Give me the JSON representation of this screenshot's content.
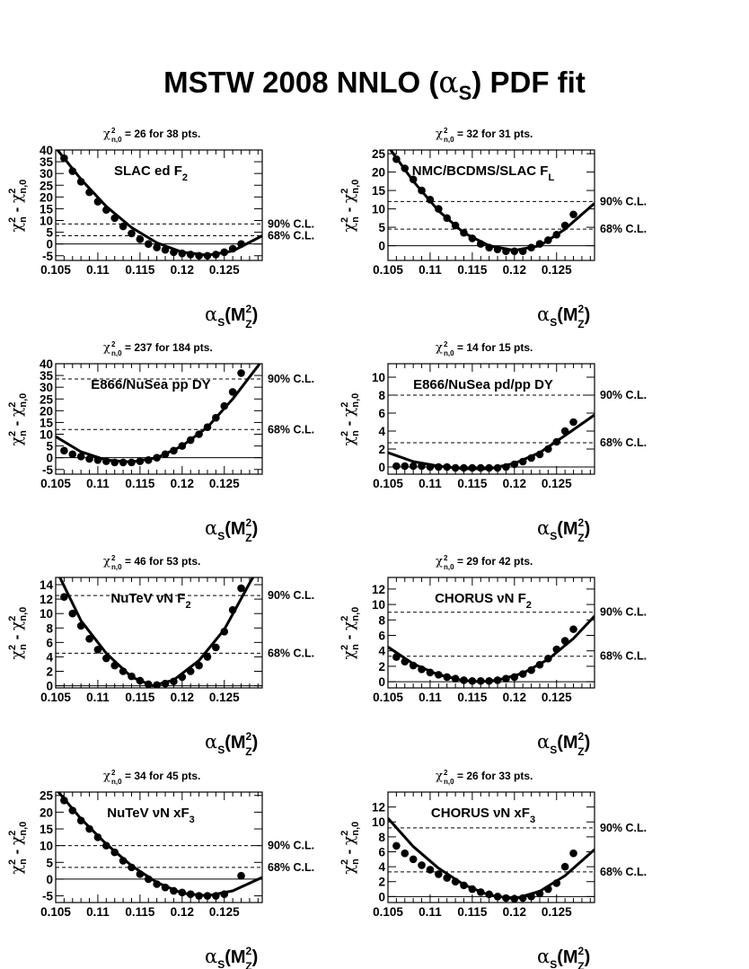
{
  "title": {
    "prefix": "MSTW 2008 NNLO (",
    "alpha": "α",
    "sub": "S",
    "suffix": ") PDF fit"
  },
  "axis_text": {
    "alpha": "α",
    "s_sub": "S",
    "mz": "(M",
    "two": "2",
    "z_sub": "Z",
    "close": ")",
    "chi": "χ",
    "n": "n",
    "n0": "n,0",
    "dash": " - "
  },
  "chart_data": [
    {
      "type": "scatter",
      "header": {
        "sub": "n,0",
        "text": " =  26 for  38 pts."
      },
      "label": "SLAC ed F",
      "label_sub": "2",
      "xlim": [
        0.105,
        0.1295
      ],
      "ylim": [
        -7,
        40
      ],
      "xticks": [
        0.105,
        0.11,
        0.115,
        0.12,
        0.125
      ],
      "xtick_labels": [
        "0.105",
        "0.11",
        "0.115",
        "0.12",
        "0.125"
      ],
      "yticks": [
        -5,
        0,
        5,
        10,
        15,
        20,
        25,
        30,
        35,
        40
      ],
      "ytick_labels": [
        "-5",
        "0",
        "5",
        "10",
        "15",
        "20",
        "25",
        "30",
        "35",
        "40"
      ],
      "cl90": 8.5,
      "cl68": 3.5,
      "cl90_label": "90% C.L.",
      "cl68_label": "68% C.L.",
      "x": [
        0.106,
        0.107,
        0.108,
        0.109,
        0.11,
        0.111,
        0.112,
        0.113,
        0.114,
        0.115,
        0.116,
        0.117,
        0.118,
        0.119,
        0.12,
        0.121,
        0.122,
        0.123,
        0.124,
        0.125,
        0.126,
        0.127
      ],
      "y": [
        36.5,
        31,
        26.5,
        22,
        18,
        14.5,
        11,
        7.5,
        4.5,
        2,
        0,
        -1.5,
        -2.5,
        -3.5,
        -4,
        -4.5,
        -5,
        -5,
        -4.5,
        -3.5,
        -2,
        0
      ],
      "curve": [
        [
          0.105,
          41
        ],
        [
          0.108,
          27.5
        ],
        [
          0.111,
          16
        ],
        [
          0.114,
          7
        ],
        [
          0.117,
          0.5
        ],
        [
          0.12,
          -3.5
        ],
        [
          0.123,
          -4.8
        ],
        [
          0.126,
          -3
        ],
        [
          0.1295,
          3.5
        ]
      ]
    },
    {
      "type": "scatter",
      "header": {
        "sub": "n,0",
        "text": " =  32 for  31 pts."
      },
      "label": "NMC/BCDMS/SLAC F",
      "label_sub": "L",
      "xlim": [
        0.105,
        0.1295
      ],
      "ylim": [
        -4,
        26
      ],
      "xticks": [
        0.105,
        0.11,
        0.115,
        0.12,
        0.125
      ],
      "xtick_labels": [
        "0.105",
        "0.11",
        "0.115",
        "0.12",
        "0.125"
      ],
      "yticks": [
        0,
        5,
        10,
        15,
        20,
        25
      ],
      "ytick_labels": [
        "0",
        "5",
        "10",
        "15",
        "20",
        "25"
      ],
      "cl90": 12,
      "cl68": 4.5,
      "cl90_label": "90% C.L.",
      "cl68_label": "68% C.L.",
      "x": [
        0.106,
        0.107,
        0.108,
        0.109,
        0.11,
        0.111,
        0.112,
        0.113,
        0.114,
        0.115,
        0.116,
        0.117,
        0.118,
        0.119,
        0.12,
        0.121,
        0.122,
        0.123,
        0.124,
        0.125,
        0.126,
        0.127
      ],
      "y": [
        23.5,
        21,
        18,
        15,
        12.5,
        10,
        7.5,
        5.5,
        3.5,
        2,
        0.5,
        -0.5,
        -1,
        -1.5,
        -1.5,
        -1.5,
        -0.5,
        0.5,
        1.5,
        3,
        5.5,
        8.5
      ],
      "curve": [
        [
          0.105,
          27
        ],
        [
          0.108,
          17.5
        ],
        [
          0.111,
          9.5
        ],
        [
          0.114,
          3.5
        ],
        [
          0.117,
          0
        ],
        [
          0.12,
          -1.3
        ],
        [
          0.123,
          0
        ],
        [
          0.126,
          4.5
        ],
        [
          0.1295,
          11.5
        ]
      ]
    },
    {
      "type": "scatter",
      "header": {
        "sub": "n,0",
        "text": " = 237 for 184 pts."
      },
      "label": "E866/NuSea pp DY",
      "label_sub": "",
      "xlim": [
        0.105,
        0.1295
      ],
      "ylim": [
        -7,
        40
      ],
      "xticks": [
        0.105,
        0.11,
        0.115,
        0.12,
        0.125
      ],
      "xtick_labels": [
        "0.105",
        "0.11",
        "0.115",
        "0.12",
        "0.125"
      ],
      "yticks": [
        -5,
        0,
        5,
        10,
        15,
        20,
        25,
        30,
        35,
        40
      ],
      "ytick_labels": [
        "-5",
        "0",
        "5",
        "10",
        "15",
        "20",
        "25",
        "30",
        "35",
        "40"
      ],
      "cl90": 33.5,
      "cl68": 12,
      "cl90_label": "90% C.L.",
      "cl68_label": "68% C.L.",
      "x": [
        0.106,
        0.107,
        0.108,
        0.109,
        0.11,
        0.111,
        0.112,
        0.113,
        0.114,
        0.115,
        0.116,
        0.117,
        0.118,
        0.119,
        0.12,
        0.121,
        0.122,
        0.123,
        0.124,
        0.125,
        0.126,
        0.127
      ],
      "y": [
        3,
        1.5,
        0.5,
        -0.5,
        -1,
        -1.5,
        -2,
        -2,
        -2,
        -1.5,
        -1,
        0,
        1.5,
        3,
        5,
        7.5,
        10,
        13,
        17,
        22,
        28,
        36
      ],
      "curve": [
        [
          0.105,
          9
        ],
        [
          0.108,
          2.5
        ],
        [
          0.111,
          -1
        ],
        [
          0.114,
          -1.8
        ],
        [
          0.117,
          0
        ],
        [
          0.12,
          5
        ],
        [
          0.123,
          13
        ],
        [
          0.126,
          25
        ],
        [
          0.1292,
          40
        ]
      ]
    },
    {
      "type": "scatter",
      "header": {
        "sub": "n,0",
        "text": " =  14 for  15 pts."
      },
      "label": "E866/NuSea pd/pp DY",
      "label_sub": "",
      "xlim": [
        0.105,
        0.1295
      ],
      "ylim": [
        -0.8,
        11.5
      ],
      "xticks": [
        0.105,
        0.11,
        0.115,
        0.12,
        0.125
      ],
      "xtick_labels": [
        "0.105",
        "0.11",
        "0.115",
        "0.12",
        "0.125"
      ],
      "yticks": [
        0,
        2,
        4,
        6,
        8,
        10
      ],
      "ytick_labels": [
        "0",
        "2",
        "4",
        "6",
        "8",
        "10"
      ],
      "cl90": 8,
      "cl68": 2.7,
      "cl90_label": "90% C.L.",
      "cl68_label": "68% C.L.",
      "x": [
        0.106,
        0.107,
        0.108,
        0.109,
        0.11,
        0.111,
        0.112,
        0.113,
        0.114,
        0.115,
        0.116,
        0.117,
        0.118,
        0.119,
        0.12,
        0.121,
        0.122,
        0.123,
        0.124,
        0.125,
        0.126,
        0.127
      ],
      "y": [
        0.1,
        0.1,
        0.1,
        0.1,
        0,
        0,
        0,
        -0.1,
        -0.1,
        -0.1,
        -0.1,
        -0.1,
        -0.1,
        0,
        0.3,
        0.6,
        1,
        1.4,
        2,
        2.8,
        4,
        5
      ],
      "curve": [
        [
          0.105,
          1.6
        ],
        [
          0.108,
          0.6
        ],
        [
          0.111,
          0.1
        ],
        [
          0.114,
          -0.2
        ],
        [
          0.117,
          -0.2
        ],
        [
          0.12,
          0.4
        ],
        [
          0.123,
          1.6
        ],
        [
          0.126,
          3.5
        ],
        [
          0.1295,
          5.8
        ]
      ]
    },
    {
      "type": "scatter",
      "header": {
        "sub": "n,0",
        "text": " =  46 for  53 pts."
      },
      "label": "NuTeV νN F",
      "label_sub": "2",
      "xlim": [
        0.105,
        0.1295
      ],
      "ylim": [
        -0.3,
        15
      ],
      "xticks": [
        0.105,
        0.11,
        0.115,
        0.12,
        0.125
      ],
      "xtick_labels": [
        "0.105",
        "0.11",
        "0.115",
        "0.12",
        "0.125"
      ],
      "yticks": [
        0,
        2,
        4,
        6,
        8,
        10,
        12,
        14
      ],
      "ytick_labels": [
        "0",
        "2",
        "4",
        "6",
        "8",
        "10",
        "12",
        "14"
      ],
      "cl90": 12.5,
      "cl68": 4.5,
      "cl90_label": "90% C.L.",
      "cl68_label": "68% C.L.",
      "x": [
        0.106,
        0.107,
        0.108,
        0.109,
        0.11,
        0.111,
        0.112,
        0.113,
        0.114,
        0.115,
        0.116,
        0.117,
        0.118,
        0.119,
        0.12,
        0.121,
        0.122,
        0.123,
        0.124,
        0.125,
        0.126,
        0.127
      ],
      "y": [
        12.3,
        10,
        8.3,
        6.5,
        5,
        3.8,
        2.8,
        2,
        1.3,
        0.7,
        0.2,
        0.1,
        0.3,
        0.6,
        1.2,
        2,
        2.8,
        4,
        5.3,
        7.5,
        10.5,
        13.5
      ],
      "curve": [
        [
          0.1055,
          15
        ],
        [
          0.108,
          9
        ],
        [
          0.111,
          4.5
        ],
        [
          0.114,
          1.2
        ],
        [
          0.1165,
          0
        ],
        [
          0.119,
          0.8
        ],
        [
          0.122,
          3.5
        ],
        [
          0.125,
          7.8
        ],
        [
          0.128,
          14.2
        ],
        [
          0.1284,
          15
        ]
      ]
    },
    {
      "type": "scatter",
      "header": {
        "sub": "n,0",
        "text": " =  29 for  42 pts."
      },
      "label": "CHORUS νN F",
      "label_sub": "2",
      "xlim": [
        0.105,
        0.1295
      ],
      "ylim": [
        -0.8,
        13.5
      ],
      "xticks": [
        0.105,
        0.11,
        0.115,
        0.12,
        0.125
      ],
      "xtick_labels": [
        "0.105",
        "0.11",
        "0.115",
        "0.12",
        "0.125"
      ],
      "yticks": [
        0,
        2,
        4,
        6,
        8,
        10,
        12
      ],
      "ytick_labels": [
        "0",
        "2",
        "4",
        "6",
        "8",
        "10",
        "12"
      ],
      "cl90": 9,
      "cl68": 3.3,
      "cl90_label": "90% C.L.",
      "cl68_label": "68% C.L.",
      "x": [
        0.106,
        0.107,
        0.108,
        0.109,
        0.11,
        0.111,
        0.112,
        0.113,
        0.114,
        0.115,
        0.116,
        0.117,
        0.118,
        0.119,
        0.12,
        0.121,
        0.122,
        0.123,
        0.124,
        0.125,
        0.126,
        0.127
      ],
      "y": [
        3.2,
        2.6,
        2.1,
        1.6,
        1.2,
        0.9,
        0.6,
        0.4,
        0.2,
        0.1,
        0.1,
        0.1,
        0.2,
        0.4,
        0.6,
        1,
        1.5,
        2.2,
        3,
        4.2,
        5.3,
        6.8
      ],
      "curve": [
        [
          0.105,
          4.5
        ],
        [
          0.108,
          2.3
        ],
        [
          0.111,
          0.9
        ],
        [
          0.114,
          0.15
        ],
        [
          0.116,
          0
        ],
        [
          0.118,
          0.2
        ],
        [
          0.121,
          1.1
        ],
        [
          0.124,
          2.9
        ],
        [
          0.127,
          5.6
        ],
        [
          0.1295,
          8.5
        ]
      ]
    },
    {
      "type": "scatter",
      "header": {
        "sub": "n,0",
        "text": " =  34 for  45 pts."
      },
      "label": "NuTeV νN xF",
      "label_sub": "3",
      "xlim": [
        0.105,
        0.1295
      ],
      "ylim": [
        -7,
        26
      ],
      "xticks": [
        0.105,
        0.11,
        0.115,
        0.12,
        0.125
      ],
      "xtick_labels": [
        "0.105",
        "0.11",
        "0.115",
        "0.12",
        "0.125"
      ],
      "yticks": [
        -5,
        0,
        5,
        10,
        15,
        20,
        25
      ],
      "ytick_labels": [
        "-5",
        "0",
        "5",
        "10",
        "15",
        "20",
        "25"
      ],
      "cl90": 10,
      "cl68": 3.5,
      "cl90_label": "90% C.L.",
      "cl68_label": "68% C.L.",
      "x": [
        0.106,
        0.107,
        0.108,
        0.109,
        0.11,
        0.111,
        0.112,
        0.113,
        0.114,
        0.115,
        0.116,
        0.117,
        0.118,
        0.119,
        0.12,
        0.121,
        0.122,
        0.123,
        0.124,
        0.125,
        0.127
      ],
      "y": [
        23.5,
        20.5,
        17.5,
        15,
        12.5,
        10,
        8,
        5.5,
        3.5,
        1.5,
        0,
        -1.5,
        -2.5,
        -3.5,
        -4,
        -4.5,
        -5,
        -5,
        -5,
        -4.5,
        1
      ],
      "curve": [
        [
          0.105,
          27
        ],
        [
          0.108,
          18
        ],
        [
          0.111,
          10.5
        ],
        [
          0.114,
          4
        ],
        [
          0.117,
          -1
        ],
        [
          0.12,
          -4.2
        ],
        [
          0.123,
          -5
        ],
        [
          0.126,
          -3.5
        ],
        [
          0.1295,
          0.5
        ]
      ]
    },
    {
      "type": "scatter",
      "header": {
        "sub": "n,0",
        "text": " =  26 for  33 pts."
      },
      "label": "CHORUS νN xF",
      "label_sub": "3",
      "xlim": [
        0.105,
        0.1295
      ],
      "ylim": [
        -0.8,
        14
      ],
      "xticks": [
        0.105,
        0.11,
        0.115,
        0.12,
        0.125
      ],
      "xtick_labels": [
        "0.105",
        "0.11",
        "0.115",
        "0.12",
        "0.125"
      ],
      "yticks": [
        0,
        2,
        4,
        6,
        8,
        10,
        12
      ],
      "ytick_labels": [
        "0",
        "2",
        "4",
        "6",
        "8",
        "10",
        "12"
      ],
      "cl90": 9.2,
      "cl68": 3.3,
      "cl90_label": "90% C.L.",
      "cl68_label": "68% C.L.",
      "x": [
        0.106,
        0.107,
        0.108,
        0.109,
        0.11,
        0.111,
        0.112,
        0.113,
        0.114,
        0.115,
        0.116,
        0.117,
        0.118,
        0.119,
        0.12,
        0.121,
        0.122,
        0.123,
        0.124,
        0.125,
        0.126,
        0.127
      ],
      "y": [
        6.8,
        5.8,
        5,
        4.2,
        3.6,
        3,
        2.5,
        2,
        1.5,
        1,
        0.6,
        0.3,
        0,
        -0.2,
        -0.3,
        -0.2,
        0,
        0.4,
        1,
        1.8,
        4,
        5.8
      ],
      "curve": [
        [
          0.105,
          10.5
        ],
        [
          0.108,
          6.7
        ],
        [
          0.111,
          3.8
        ],
        [
          0.114,
          1.6
        ],
        [
          0.117,
          0.2
        ],
        [
          0.12,
          -0.3
        ],
        [
          0.123,
          0.7
        ],
        [
          0.126,
          2.8
        ],
        [
          0.1295,
          6.3
        ]
      ]
    }
  ]
}
